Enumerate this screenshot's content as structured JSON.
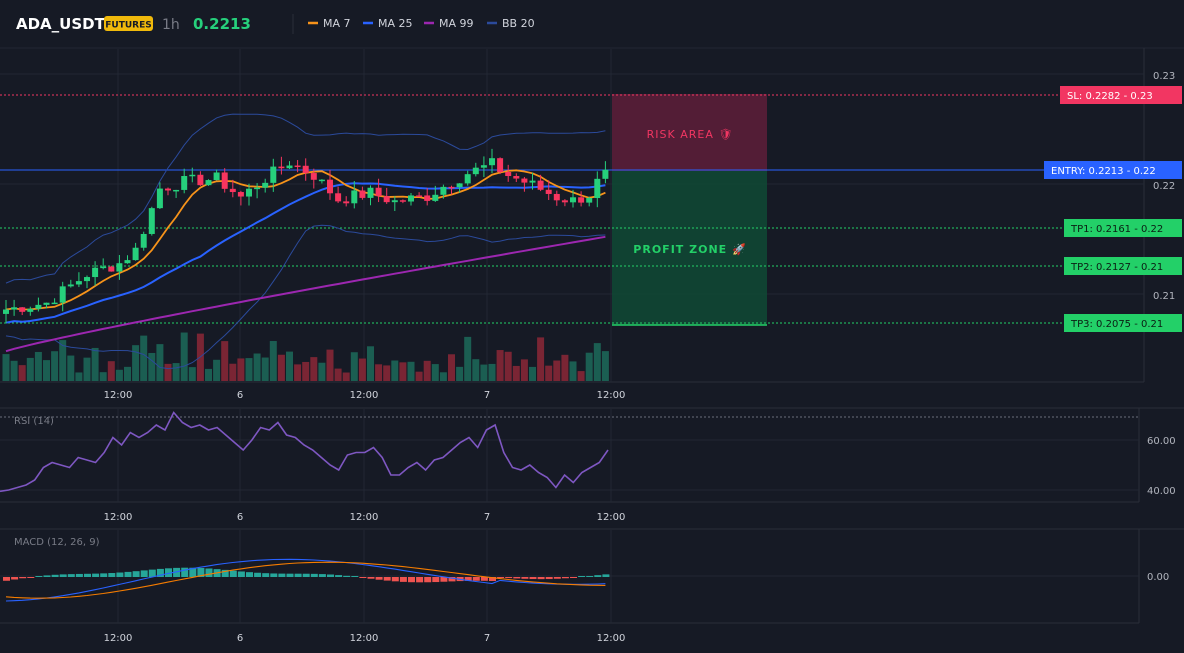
{
  "header": {
    "symbol": "ADA_USDT",
    "badge": "FUTURES",
    "timeframe": "1h",
    "price": "0.2213",
    "legend": [
      {
        "name": "MA 7",
        "color": "#f7931a"
      },
      {
        "name": "MA 25",
        "color": "#2962ff"
      },
      {
        "name": "MA 99",
        "color": "#9c27b0"
      },
      {
        "name": "BB 20",
        "color": "#2b4a9b"
      }
    ]
  },
  "colors": {
    "bg": "#161a25",
    "grid": "#222733",
    "up": "#26d07c",
    "down": "#f7355f",
    "vol_up": "#1b5e52",
    "vol_down": "#7a2534",
    "ma7": "#f7931a",
    "ma25": "#2962ff",
    "ma99": "#9c27b0",
    "bb": "#2b4a9b",
    "rsi": "#7e57c2",
    "macd": "#2962ff",
    "signal": "#f57c00",
    "sl": "#f23662",
    "entry": "#2962ff",
    "tp": "#23d068"
  },
  "main_axis": {
    "ticks": [
      "0.23",
      "0.22",
      "0.21"
    ]
  },
  "time_axis": {
    "labels": [
      "12:00",
      "6",
      "12:00",
      "7",
      "12:00"
    ]
  },
  "zones": {
    "risk": "RISK AREA 🛡",
    "profit": "PROFIT ZONE 🚀"
  },
  "levels": {
    "sl": {
      "label": "SL: 0.2282",
      "axis": "0.23"
    },
    "entry": {
      "label": "ENTRY: 0.2213",
      "axis": "0.22"
    },
    "tp1": {
      "label": "TP1: 0.2161",
      "axis": "0.22"
    },
    "tp2": {
      "label": "TP2: 0.2127",
      "axis": "0.21"
    },
    "tp3": {
      "label": "TP3: 0.2075",
      "axis": "0.21"
    }
  },
  "rsi": {
    "title": "RSI (14)",
    "ticks": [
      "60.00",
      "40.00"
    ],
    "values": [
      39.5,
      40,
      41,
      42,
      44,
      49,
      51,
      50,
      49,
      53,
      52,
      51,
      55,
      61,
      58,
      63,
      61,
      63,
      66,
      64,
      71,
      67,
      65,
      66,
      64,
      65,
      62,
      59,
      56,
      60,
      65,
      64,
      67,
      62,
      61,
      58,
      56,
      53,
      50,
      48,
      54,
      55,
      55,
      57,
      53,
      46,
      46,
      49,
      51,
      48,
      52,
      53,
      56,
      59,
      61,
      57,
      64,
      66,
      55,
      49,
      48,
      50,
      47,
      45,
      41,
      46,
      43,
      47,
      49,
      51,
      56
    ]
  },
  "macd": {
    "title": "MACD (12, 26, 9)",
    "tick": "0.00"
  }
}
